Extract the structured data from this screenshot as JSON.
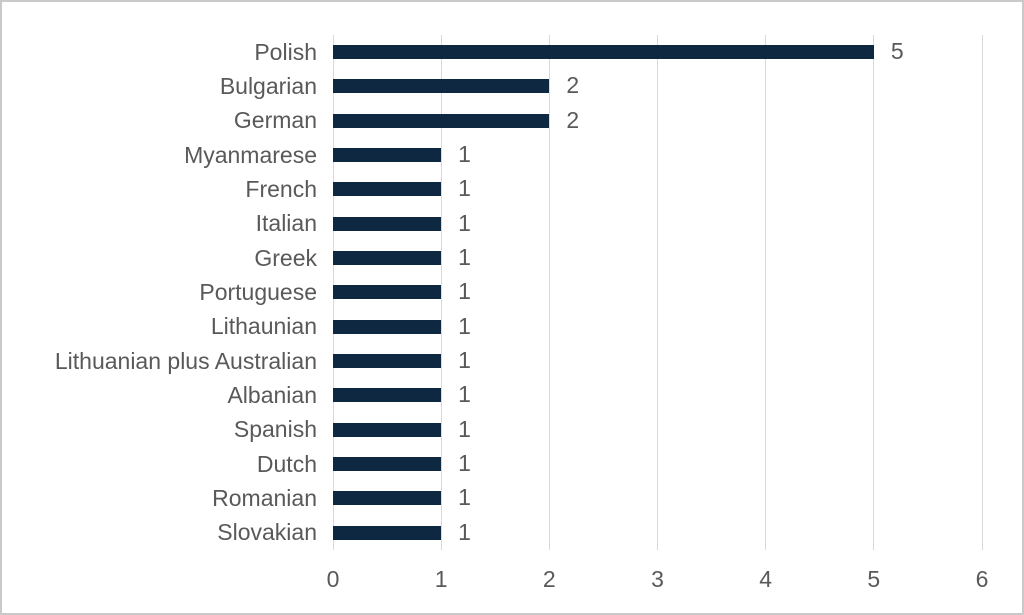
{
  "chart_data": {
    "type": "bar",
    "orientation": "horizontal",
    "title": "",
    "xlabel": "",
    "ylabel": "",
    "categories": [
      "Polish",
      "Bulgarian",
      "German",
      "Myanmarese",
      "French",
      "Italian",
      "Greek",
      "Portuguese",
      "Lithaunian",
      "Lithuanian plus Australian",
      "Albanian",
      "Spanish",
      "Dutch",
      "Romanian",
      "Slovakian"
    ],
    "values": [
      5,
      2,
      2,
      1,
      1,
      1,
      1,
      1,
      1,
      1,
      1,
      1,
      1,
      1,
      1
    ],
    "xlim": [
      0,
      6
    ],
    "xticks": [
      "0",
      "1",
      "2",
      "3",
      "4",
      "5",
      "6"
    ],
    "grid": "vertical-gridlines-on",
    "legend": "none",
    "data_labels_shown": true,
    "colors": {
      "bar": "#0e2841",
      "gridline": "#d9d9d9",
      "text": "#595959",
      "frame_border": "#c9c9c9",
      "background": "#ffffff"
    }
  }
}
